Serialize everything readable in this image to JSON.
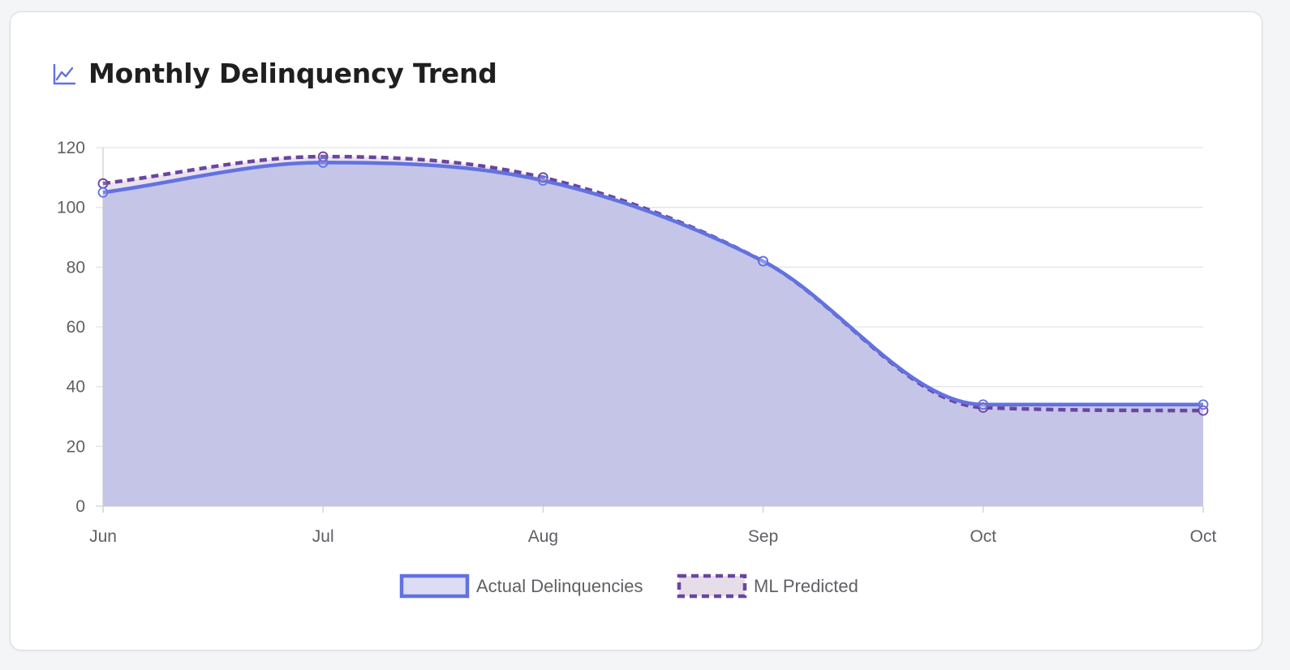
{
  "card": {
    "title": "Monthly Delinquency Trend",
    "icon": "line-chart-icon"
  },
  "colors": {
    "actual_line": "#6272e0",
    "actual_fill": "#c5c5e7",
    "predicted_line": "#6a45a0",
    "predicted_fill": "#e6dde9",
    "grid": "#e4e4e8",
    "axis_text": "#5f6064"
  },
  "chart_data": {
    "type": "area",
    "title": "",
    "xlabel": "",
    "ylabel": "",
    "categories": [
      "Jun",
      "Jul",
      "Aug",
      "Sep",
      "Oct",
      "Oct"
    ],
    "ylim": [
      0,
      120
    ],
    "yticks": [
      0,
      20,
      40,
      60,
      80,
      100,
      120
    ],
    "grid": true,
    "legend_position": "bottom-center",
    "series": [
      {
        "name": "Actual Delinquencies",
        "values": [
          105,
          115,
          109,
          82,
          34,
          34
        ],
        "line_style": "solid"
      },
      {
        "name": "ML Predicted",
        "values": [
          108,
          117,
          110,
          82,
          33,
          32
        ],
        "line_style": "dashed"
      }
    ]
  }
}
